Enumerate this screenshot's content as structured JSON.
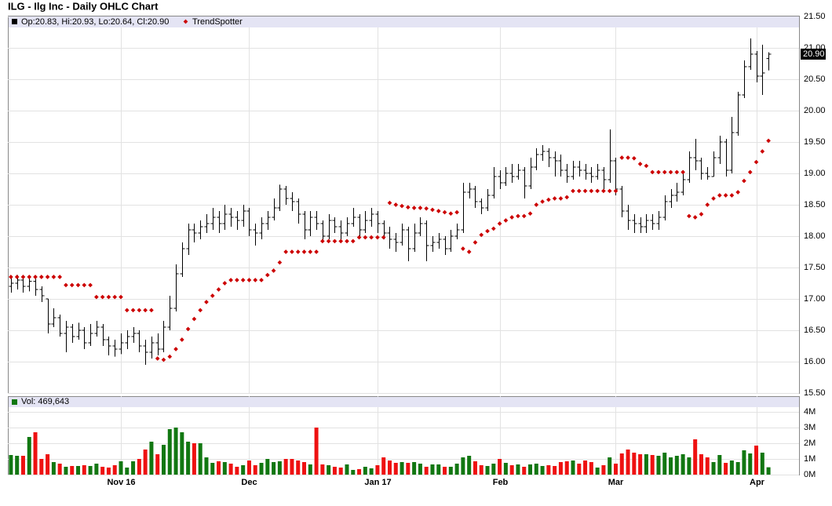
{
  "chart_data": [
    {
      "type": "ohlc",
      "title": "ILG - Ilg Inc - Daily OHLC Chart",
      "xlim": [
        -0.5,
        129
      ],
      "ylim": [
        15.5,
        21.5
      ],
      "yticks": [
        {
          "value": 15.5,
          "label": "15.50"
        },
        {
          "value": 16,
          "label": "16.00"
        },
        {
          "value": 16.5,
          "label": "16.50"
        },
        {
          "value": 17,
          "label": "17.00"
        },
        {
          "value": 17.5,
          "label": "17.50"
        },
        {
          "value": 18,
          "label": "18.00"
        },
        {
          "value": 18.5,
          "label": "18.50"
        },
        {
          "value": 19,
          "label": "19.00"
        },
        {
          "value": 19.5,
          "label": "19.50"
        },
        {
          "value": 20,
          "label": "20.00"
        },
        {
          "value": 20.5,
          "label": "20.50"
        },
        {
          "value": 21,
          "label": "21.00"
        },
        {
          "value": 21.5,
          "label": "21.50"
        }
      ],
      "grid": true,
      "last_label": "20.90",
      "series": [
        {
          "name": "Op:20.83, Hi:20.93, Lo:20.64, Cl:20.90",
          "color": "#000000",
          "open": [
            17.2,
            17.25,
            17.3,
            17.2,
            17.28,
            17.15,
            17.0,
            16.6,
            16.7,
            16.45,
            16.55,
            16.4,
            16.5,
            16.3,
            16.45,
            16.55,
            16.35,
            16.25,
            16.2,
            16.3,
            16.4,
            16.45,
            16.25,
            16.15,
            16.3,
            16.2,
            16.55,
            16.85,
            17.4,
            17.8,
            18.1,
            18.05,
            18.15,
            18.2,
            18.3,
            18.2,
            18.35,
            18.3,
            18.25,
            18.4,
            18.1,
            18.05,
            18.2,
            18.3,
            18.45,
            18.75,
            18.6,
            18.55,
            18.35,
            18.1,
            18.3,
            18.2,
            18.0,
            18.25,
            18.15,
            18.05,
            18.2,
            18.3,
            18.1,
            18.25,
            18.35,
            18.2,
            18.05,
            17.95,
            17.9,
            18.1,
            17.8,
            18.05,
            18.2,
            17.85,
            17.9,
            17.95,
            17.8,
            18.0,
            18.1,
            18.7,
            18.75,
            18.55,
            18.45,
            18.65,
            18.95,
            18.85,
            19.0,
            18.95,
            19.05,
            18.8,
            19.1,
            19.3,
            19.35,
            19.25,
            19.2,
            19.05,
            18.95,
            19.1,
            19.05,
            19.0,
            18.95,
            19.05,
            18.9,
            19.2,
            18.75,
            18.4,
            18.25,
            18.2,
            18.15,
            18.25,
            18.2,
            18.3,
            18.55,
            18.65,
            18.7,
            18.9,
            19.25,
            19.2,
            19.0,
            18.95,
            19.25,
            19.5,
            19.05,
            19.65,
            20.25,
            20.7,
            20.9,
            20.55,
            20.83
          ],
          "high": [
            17.35,
            17.38,
            17.38,
            17.35,
            17.32,
            17.2,
            17.0,
            16.85,
            16.75,
            16.65,
            16.6,
            16.62,
            16.55,
            16.6,
            16.65,
            16.6,
            16.4,
            16.35,
            16.45,
            16.5,
            16.55,
            16.5,
            16.35,
            16.4,
            16.45,
            16.65,
            17.05,
            17.55,
            17.9,
            18.2,
            18.2,
            18.25,
            18.35,
            18.45,
            18.4,
            18.5,
            18.45,
            18.4,
            18.5,
            18.45,
            18.2,
            18.3,
            18.4,
            18.6,
            18.82,
            18.8,
            18.7,
            18.6,
            18.4,
            18.4,
            18.4,
            18.25,
            18.35,
            18.3,
            18.25,
            18.3,
            18.45,
            18.35,
            18.4,
            18.45,
            18.4,
            18.25,
            18.15,
            18.05,
            18.2,
            18.15,
            18.2,
            18.3,
            18.25,
            18.0,
            18.05,
            18.0,
            18.1,
            18.2,
            18.85,
            18.85,
            18.8,
            18.6,
            18.75,
            19.1,
            19.05,
            19.1,
            19.15,
            19.15,
            19.1,
            19.25,
            19.4,
            19.45,
            19.4,
            19.35,
            19.3,
            19.15,
            19.2,
            19.2,
            19.15,
            19.1,
            19.15,
            19.1,
            19.7,
            19.25,
            18.8,
            18.5,
            18.35,
            18.3,
            18.35,
            18.35,
            18.4,
            18.65,
            18.75,
            18.85,
            19.05,
            19.35,
            19.55,
            19.25,
            19.1,
            19.35,
            19.6,
            19.55,
            19.9,
            20.3,
            20.8,
            21.15,
            20.95,
            21.05,
            20.93
          ],
          "low": [
            17.1,
            17.15,
            17.1,
            17.12,
            17.05,
            16.95,
            16.45,
            16.55,
            16.4,
            16.15,
            16.3,
            16.35,
            16.2,
            16.25,
            16.4,
            16.25,
            16.1,
            16.08,
            16.12,
            16.2,
            16.3,
            16.15,
            15.95,
            16.05,
            16.1,
            16.15,
            16.5,
            16.8,
            17.35,
            17.7,
            17.9,
            17.95,
            18.05,
            18.1,
            18.05,
            18.1,
            18.15,
            18.1,
            18.15,
            18.0,
            17.85,
            17.95,
            18.1,
            18.25,
            18.4,
            18.5,
            18.4,
            18.2,
            17.95,
            18.0,
            18.1,
            17.9,
            17.95,
            18.05,
            17.95,
            18.0,
            18.15,
            18.0,
            18.05,
            18.15,
            18.05,
            17.95,
            17.8,
            17.75,
            17.85,
            17.6,
            17.75,
            18.0,
            17.6,
            17.75,
            17.8,
            17.7,
            17.75,
            17.95,
            18.05,
            18.6,
            18.45,
            18.35,
            18.4,
            18.6,
            18.75,
            18.8,
            18.85,
            18.9,
            18.6,
            18.75,
            19.05,
            19.2,
            19.1,
            18.95,
            18.95,
            18.85,
            18.9,
            18.95,
            18.9,
            18.85,
            18.9,
            18.75,
            18.85,
            18.65,
            18.3,
            18.1,
            18.05,
            18.05,
            18.05,
            18.1,
            18.1,
            18.25,
            18.45,
            18.55,
            18.65,
            18.85,
            19.05,
            18.9,
            18.9,
            18.95,
            19.15,
            18.95,
            19.0,
            19.6,
            20.2,
            20.65,
            20.45,
            20.25,
            20.64
          ],
          "close": [
            17.25,
            17.3,
            17.2,
            17.28,
            17.15,
            17.05,
            16.6,
            16.7,
            16.45,
            16.55,
            16.4,
            16.5,
            16.3,
            16.45,
            16.55,
            16.35,
            16.25,
            16.2,
            16.3,
            16.4,
            16.45,
            16.25,
            16.15,
            16.3,
            16.2,
            16.55,
            16.85,
            17.4,
            17.8,
            18.1,
            18.05,
            18.15,
            18.2,
            18.3,
            18.2,
            18.35,
            18.3,
            18.25,
            18.4,
            18.1,
            18.05,
            18.2,
            18.3,
            18.45,
            18.75,
            18.6,
            18.55,
            18.35,
            18.1,
            18.3,
            18.2,
            18.0,
            18.25,
            18.15,
            18.05,
            18.2,
            18.3,
            18.1,
            18.25,
            18.35,
            18.2,
            18.05,
            17.95,
            17.9,
            18.1,
            17.8,
            18.05,
            18.2,
            17.85,
            17.9,
            17.95,
            17.8,
            18.0,
            18.1,
            18.7,
            18.75,
            18.55,
            18.45,
            18.65,
            18.95,
            18.85,
            19.0,
            18.95,
            19.05,
            18.8,
            19.1,
            19.3,
            19.35,
            19.25,
            19.2,
            19.05,
            18.95,
            19.1,
            19.05,
            19.0,
            18.95,
            19.05,
            18.9,
            19.2,
            18.75,
            18.4,
            18.25,
            18.2,
            18.15,
            18.25,
            18.2,
            18.3,
            18.55,
            18.65,
            18.7,
            18.9,
            19.25,
            19.2,
            19.0,
            18.95,
            19.25,
            19.5,
            19.05,
            19.65,
            20.25,
            20.7,
            20.9,
            20.55,
            20.6,
            20.9
          ]
        },
        {
          "name": "TrendSpotter",
          "color": "#cc0000",
          "values": [
            17.35,
            17.35,
            17.35,
            17.35,
            17.35,
            17.35,
            17.35,
            17.35,
            17.35,
            17.22,
            17.22,
            17.22,
            17.22,
            17.22,
            17.03,
            17.03,
            17.03,
            17.03,
            17.03,
            16.82,
            16.82,
            16.82,
            16.82,
            16.82,
            16.05,
            16.03,
            16.08,
            16.2,
            16.35,
            16.52,
            16.68,
            16.82,
            16.95,
            17.05,
            17.15,
            17.25,
            17.3,
            17.3,
            17.3,
            17.3,
            17.3,
            17.3,
            17.38,
            17.45,
            17.58,
            17.75,
            17.75,
            17.75,
            17.75,
            17.75,
            17.75,
            17.92,
            17.92,
            17.92,
            17.92,
            17.92,
            17.92,
            17.98,
            17.98,
            17.98,
            17.98,
            17.98,
            18.53,
            18.5,
            18.48,
            18.46,
            18.45,
            18.45,
            18.44,
            18.42,
            18.4,
            18.38,
            18.36,
            18.38,
            17.8,
            17.75,
            17.9,
            18.02,
            18.08,
            18.12,
            18.2,
            18.25,
            18.3,
            18.32,
            18.32,
            18.36,
            18.5,
            18.55,
            18.58,
            18.6,
            18.6,
            18.62,
            18.72,
            18.72,
            18.72,
            18.72,
            18.72,
            18.72,
            18.72,
            18.72,
            19.25,
            19.25,
            19.24,
            19.15,
            19.12,
            19.02,
            19.02,
            19.02,
            19.02,
            19.02,
            19.02,
            18.32,
            18.3,
            18.35,
            18.5,
            18.6,
            18.65,
            18.65,
            18.65,
            18.7,
            18.88,
            19.02,
            19.18,
            19.35,
            19.52
          ]
        }
      ]
    },
    {
      "type": "bar",
      "xlim": [
        -0.5,
        129
      ],
      "ylim": [
        0,
        5000000
      ],
      "yticks": [
        {
          "value": 0,
          "label": "0M"
        },
        {
          "value": 1000000,
          "label": "1M"
        },
        {
          "value": 2000000,
          "label": "2M"
        },
        {
          "value": 3000000,
          "label": "3M"
        },
        {
          "value": 4000000,
          "label": "4M"
        }
      ],
      "xticks": [
        {
          "value": 18,
          "label": "Nov 16"
        },
        {
          "value": 39,
          "label": "Dec"
        },
        {
          "value": 60,
          "label": "Jan 17"
        },
        {
          "value": 80,
          "label": "Feb"
        },
        {
          "value": 99,
          "label": "Mar"
        },
        {
          "value": 122,
          "label": "Apr"
        }
      ],
      "grid": true,
      "series": [
        {
          "name": "Vol: 469,643",
          "up_color": "#117711",
          "down_color": "#ee1111",
          "values": [
            1250000,
            1200000,
            1200000,
            2400000,
            2700000,
            1000000,
            1300000,
            800000,
            700000,
            500000,
            550000,
            550000,
            600000,
            550000,
            700000,
            500000,
            450000,
            600000,
            850000,
            450000,
            850000,
            1000000,
            1600000,
            2100000,
            1300000,
            1900000,
            2900000,
            3000000,
            2700000,
            2100000,
            2000000,
            2000000,
            1100000,
            750000,
            850000,
            800000,
            700000,
            500000,
            600000,
            900000,
            600000,
            750000,
            1000000,
            800000,
            850000,
            1000000,
            1000000,
            900000,
            800000,
            650000,
            3000000,
            650000,
            600000,
            500000,
            450000,
            650000,
            300000,
            350000,
            500000,
            400000,
            600000,
            1100000,
            900000,
            750000,
            800000,
            750000,
            800000,
            700000,
            500000,
            650000,
            650000,
            500000,
            500000,
            700000,
            1100000,
            1200000,
            850000,
            600000,
            550000,
            700000,
            1000000,
            750000,
            600000,
            650000,
            500000,
            650000,
            700000,
            550000,
            600000,
            550000,
            800000,
            850000,
            900000,
            700000,
            900000,
            800000,
            450000,
            600000,
            1100000,
            700000,
            1350000,
            1600000,
            1400000,
            1300000,
            1300000,
            1250000,
            1200000,
            1400000,
            1100000,
            1200000,
            1300000,
            1100000,
            2250000,
            1300000,
            1100000,
            800000,
            1250000,
            750000,
            900000,
            800000,
            1550000,
            1350000,
            1850000,
            1400000,
            469643
          ]
        }
      ]
    }
  ]
}
